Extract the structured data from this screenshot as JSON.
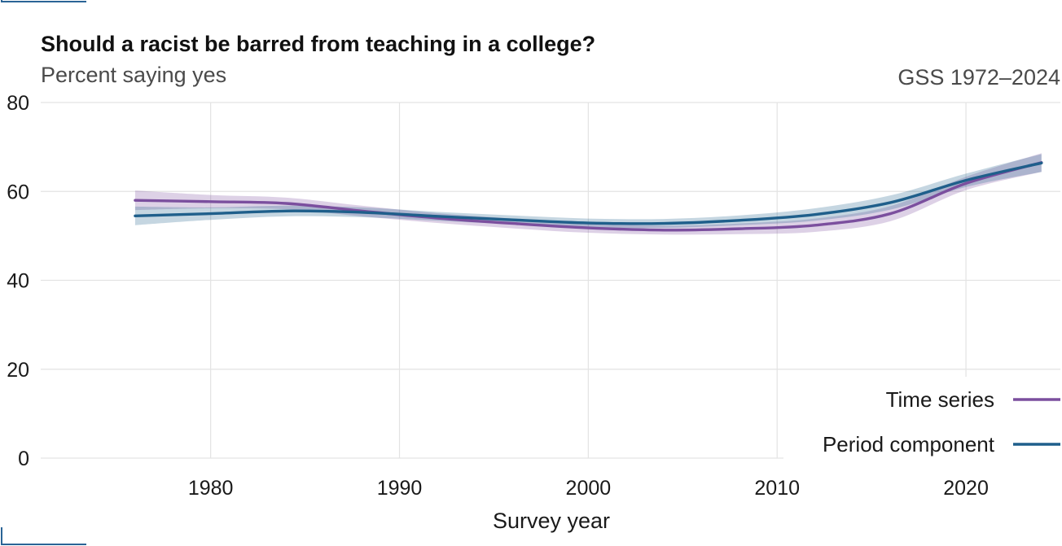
{
  "chart_data": {
    "type": "line",
    "title": "Should a racist be barred from teaching in a college?",
    "subtitle": "Percent saying yes",
    "source": "GSS 1972–2024",
    "xlabel": "Survey year",
    "ylabel": "",
    "xlim": [
      1971,
      2025
    ],
    "ylim": [
      0,
      80
    ],
    "x_ticks": [
      1980,
      1990,
      2000,
      2010,
      2020
    ],
    "y_ticks": [
      0,
      20,
      40,
      60,
      80
    ],
    "grid": true,
    "legend_position": "bottom-right",
    "series": [
      {
        "name": "Time series",
        "color": "#7b4f9e",
        "x": [
          1976,
          1980,
          1984,
          1988,
          1992,
          1996,
          2000,
          2004,
          2008,
          2012,
          2016,
          2020,
          2024
        ],
        "y": [
          58.0,
          57.7,
          57.3,
          55.6,
          54.0,
          52.8,
          51.8,
          51.3,
          51.6,
          52.4,
          55.0,
          61.8,
          66.5
        ],
        "lower": [
          55.8,
          56.2,
          56.0,
          54.4,
          52.9,
          51.7,
          50.7,
          50.3,
          50.4,
          50.9,
          53.3,
          60.3,
          64.4
        ],
        "upper": [
          60.2,
          59.2,
          58.6,
          56.8,
          55.1,
          53.9,
          52.9,
          52.3,
          52.8,
          53.9,
          56.7,
          63.3,
          68.6
        ]
      },
      {
        "name": "Period component",
        "color": "#1f5f8b",
        "x": [
          1976,
          1980,
          1984,
          1988,
          1992,
          1996,
          2000,
          2004,
          2008,
          2012,
          2016,
          2020,
          2024
        ],
        "y": [
          54.5,
          55.0,
          55.6,
          55.3,
          54.4,
          53.6,
          52.9,
          52.8,
          53.5,
          54.8,
          57.5,
          62.5,
          66.4
        ],
        "lower": [
          52.4,
          53.6,
          54.4,
          54.2,
          53.4,
          52.6,
          51.9,
          51.8,
          52.4,
          53.4,
          55.9,
          61.0,
          64.4
        ],
        "upper": [
          56.6,
          56.4,
          56.8,
          56.4,
          55.4,
          54.6,
          53.9,
          53.8,
          54.6,
          56.2,
          59.1,
          64.0,
          68.4
        ]
      }
    ]
  }
}
